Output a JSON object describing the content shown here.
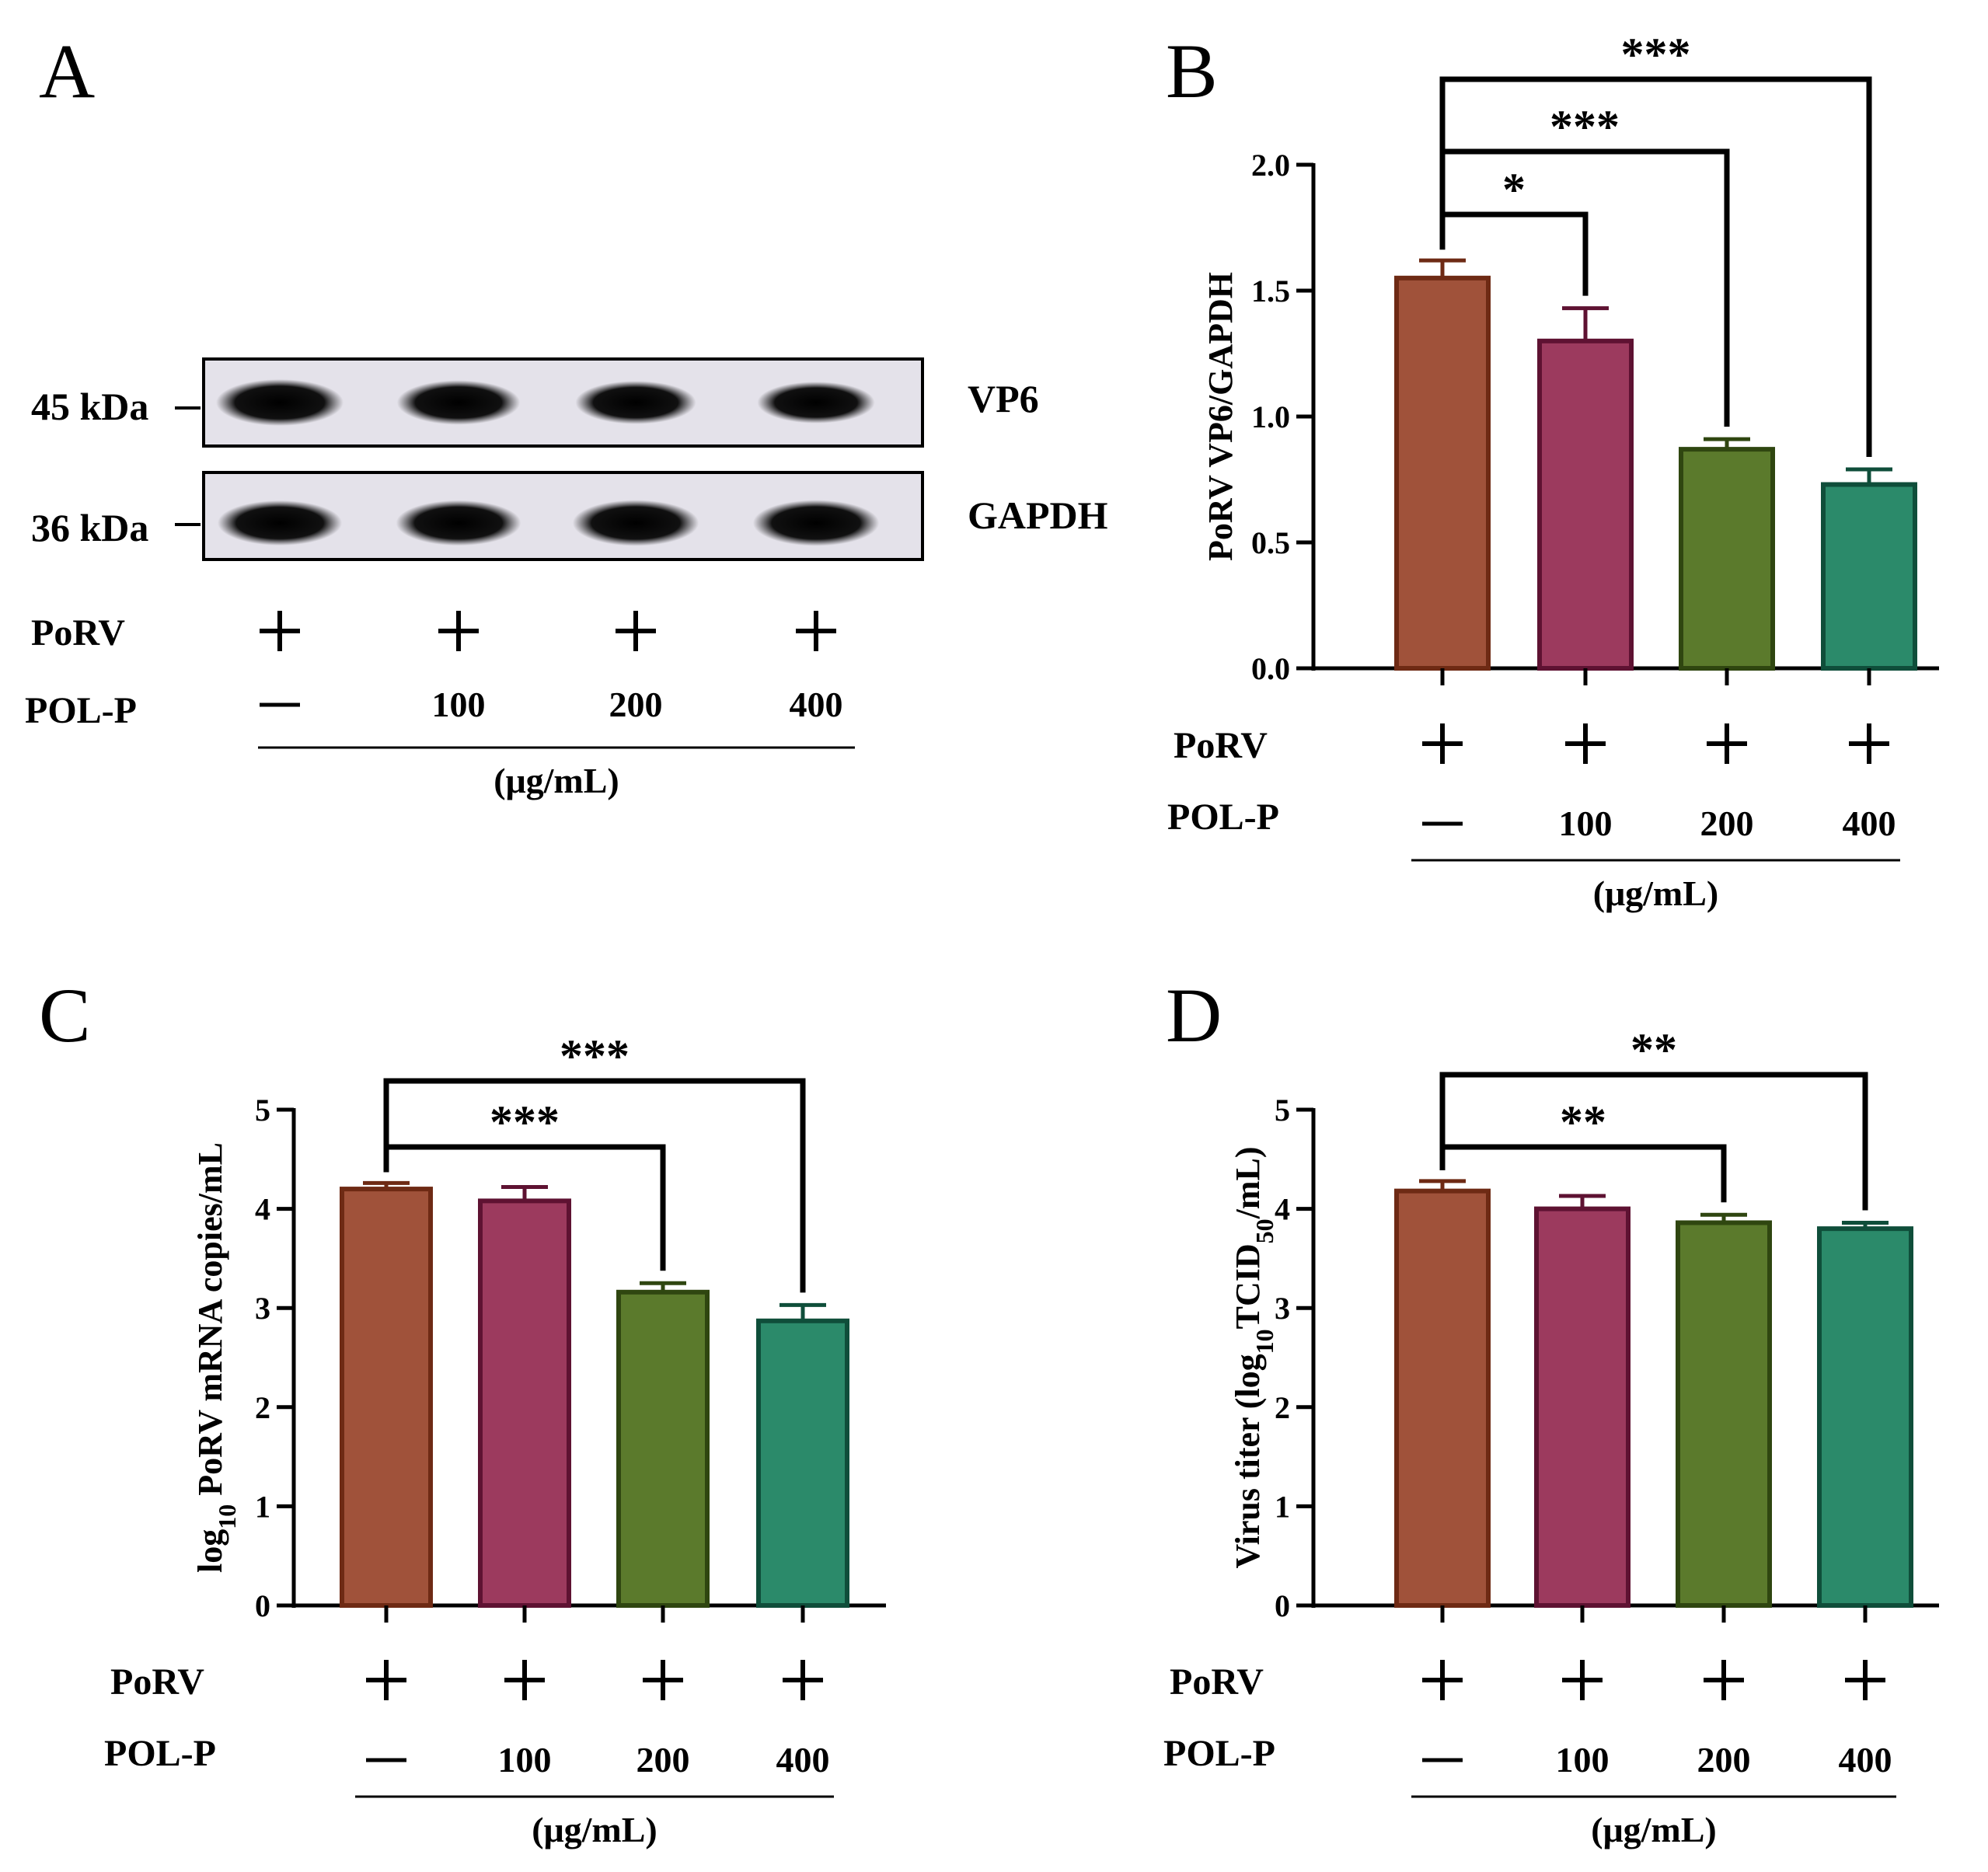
{
  "chart_data": [
    {
      "panel": "A",
      "type": "western-blot",
      "bands": [
        {
          "label": "VP6",
          "marker": "45 kDa",
          "intensity": [
            1.0,
            0.86,
            0.78,
            0.68
          ]
        },
        {
          "label": "GAPDH",
          "marker": "36 kDa",
          "intensity": [
            0.9,
            0.92,
            0.96,
            0.96
          ]
        }
      ],
      "lanes": {
        "row1": {
          "label": "PoRV",
          "values": [
            "+",
            "+",
            "+",
            "+"
          ]
        },
        "row2": {
          "label": "POL-P",
          "values": [
            "—",
            "100",
            "200",
            "400"
          ]
        },
        "unit": "(μg/mL)"
      }
    },
    {
      "panel": "B",
      "type": "bar",
      "ylabel": "PoRV VP6/GAPDH",
      "ylim": [
        0,
        2.0
      ],
      "ticks": [
        0,
        0.5,
        1.0,
        1.5,
        2.0
      ],
      "tick_labels": [
        "0.0",
        "0.5",
        "1.0",
        "1.5",
        "2.0"
      ],
      "categories": [
        "—",
        "100",
        "200",
        "400"
      ],
      "values": [
        1.55,
        1.3,
        0.87,
        0.73
      ],
      "errors": [
        0.07,
        0.13,
        0.04,
        0.06
      ],
      "colors": [
        "#a0523a",
        "#9c3a5e",
        "#5b7a2c",
        "#2b8a6a"
      ],
      "borders": [
        "#6e2a14",
        "#5e1232",
        "#2f4610",
        "#0f4e3a"
      ],
      "significance": [
        {
          "to": 1,
          "label": "*"
        },
        {
          "to": 2,
          "label": "***"
        },
        {
          "to": 3,
          "label": "***"
        }
      ],
      "lanes": {
        "row1": {
          "label": "PoRV",
          "values": [
            "+",
            "+",
            "+",
            "+"
          ]
        },
        "row2": {
          "label": "POL-P",
          "values": [
            "—",
            "100",
            "200",
            "400"
          ]
        },
        "unit": "(μg/mL)"
      }
    },
    {
      "panel": "C",
      "type": "bar",
      "ylabel": "log10 PoRV mRNA copies/mL",
      "ylabel_parts": {
        "pre": "log",
        "sub": "10",
        "post": " PoRV mRNA copies/mL"
      },
      "ylim": [
        0,
        5
      ],
      "ticks": [
        0,
        1,
        2,
        3,
        4,
        5
      ],
      "tick_labels": [
        "0",
        "1",
        "2",
        "3",
        "4",
        "5"
      ],
      "categories": [
        "—",
        "100",
        "200",
        "400"
      ],
      "values": [
        4.2,
        4.08,
        3.16,
        2.87
      ],
      "errors": [
        0.06,
        0.14,
        0.09,
        0.16
      ],
      "colors": [
        "#a0523a",
        "#9c3a5e",
        "#5b7a2c",
        "#2b8a6a"
      ],
      "borders": [
        "#6e2a14",
        "#5e1232",
        "#2f4610",
        "#0f4e3a"
      ],
      "significance": [
        {
          "to": 2,
          "label": "***"
        },
        {
          "to": 3,
          "label": "***"
        }
      ],
      "lanes": {
        "row1": {
          "label": "PoRV",
          "values": [
            "+",
            "+",
            "+",
            "+"
          ]
        },
        "row2": {
          "label": "POL-P",
          "values": [
            "—",
            "100",
            "200",
            "400"
          ]
        },
        "unit": "(μg/mL)"
      }
    },
    {
      "panel": "D",
      "type": "bar",
      "ylabel": "Virus titer (log10TCID50/mL)",
      "ylabel_parts": {
        "pre": "Virus titer (log",
        "sub": "10",
        "mid": "TCID",
        "sub2": "50",
        "post": "/mL)"
      },
      "ylim": [
        0,
        5
      ],
      "ticks": [
        0,
        1,
        2,
        3,
        4,
        5
      ],
      "tick_labels": [
        "0",
        "1",
        "2",
        "3",
        "4",
        "5"
      ],
      "categories": [
        "—",
        "100",
        "200",
        "400"
      ],
      "values": [
        4.18,
        4.0,
        3.86,
        3.8
      ],
      "errors": [
        0.1,
        0.13,
        0.08,
        0.06
      ],
      "colors": [
        "#a0523a",
        "#9c3a5e",
        "#5b7a2c",
        "#2b8a6a"
      ],
      "borders": [
        "#6e2a14",
        "#5e1232",
        "#2f4610",
        "#0f4e3a"
      ],
      "significance": [
        {
          "to": 2,
          "label": "**"
        },
        {
          "to": 3,
          "label": "**"
        }
      ],
      "lanes": {
        "row1": {
          "label": "PoRV",
          "values": [
            "+",
            "+",
            "+",
            "+"
          ]
        },
        "row2": {
          "label": "POL-P",
          "values": [
            "—",
            "100",
            "200",
            "400"
          ]
        },
        "unit": "(μg/mL)"
      }
    }
  ]
}
